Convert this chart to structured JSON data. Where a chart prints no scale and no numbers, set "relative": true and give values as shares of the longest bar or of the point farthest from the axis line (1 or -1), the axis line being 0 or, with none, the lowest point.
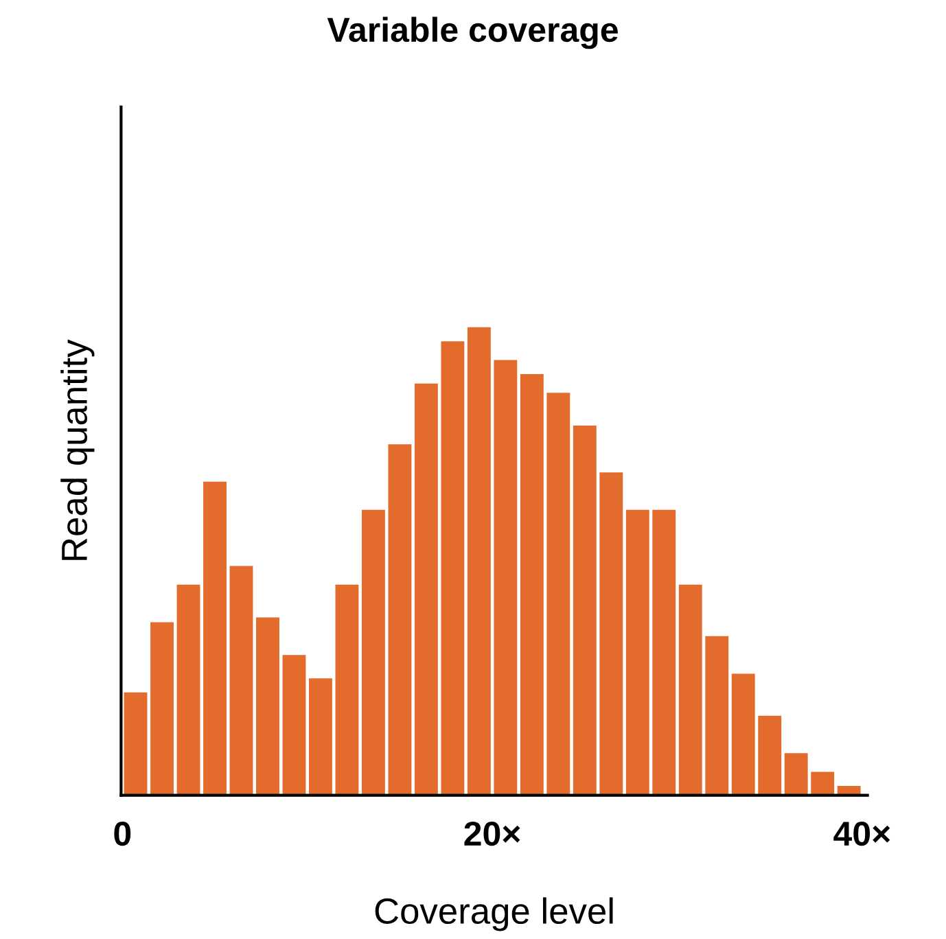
{
  "chart_data": {
    "type": "bar",
    "title": "Variable coverage",
    "xlabel": "Coverage level",
    "ylabel": "Read quantity",
    "relative": true,
    "color": "#e36c2c",
    "categories": [
      null,
      null,
      null,
      null,
      null,
      null,
      null,
      null,
      null,
      null,
      null,
      null,
      null,
      null,
      null,
      null,
      null,
      null,
      null,
      null,
      null,
      null,
      null,
      null,
      null,
      null,
      null,
      null
    ],
    "values": [
      0.22,
      0.37,
      0.45,
      0.67,
      0.49,
      0.38,
      0.3,
      0.25,
      0.45,
      0.61,
      0.75,
      0.88,
      0.97,
      1,
      0.93,
      0.9,
      0.86,
      0.79,
      0.69,
      0.61,
      0.61,
      0.45,
      0.34,
      0.26,
      0.17,
      0.09,
      0.05,
      0.02
    ],
    "annotations": [
      "0",
      "20×",
      "40×"
    ]
  }
}
